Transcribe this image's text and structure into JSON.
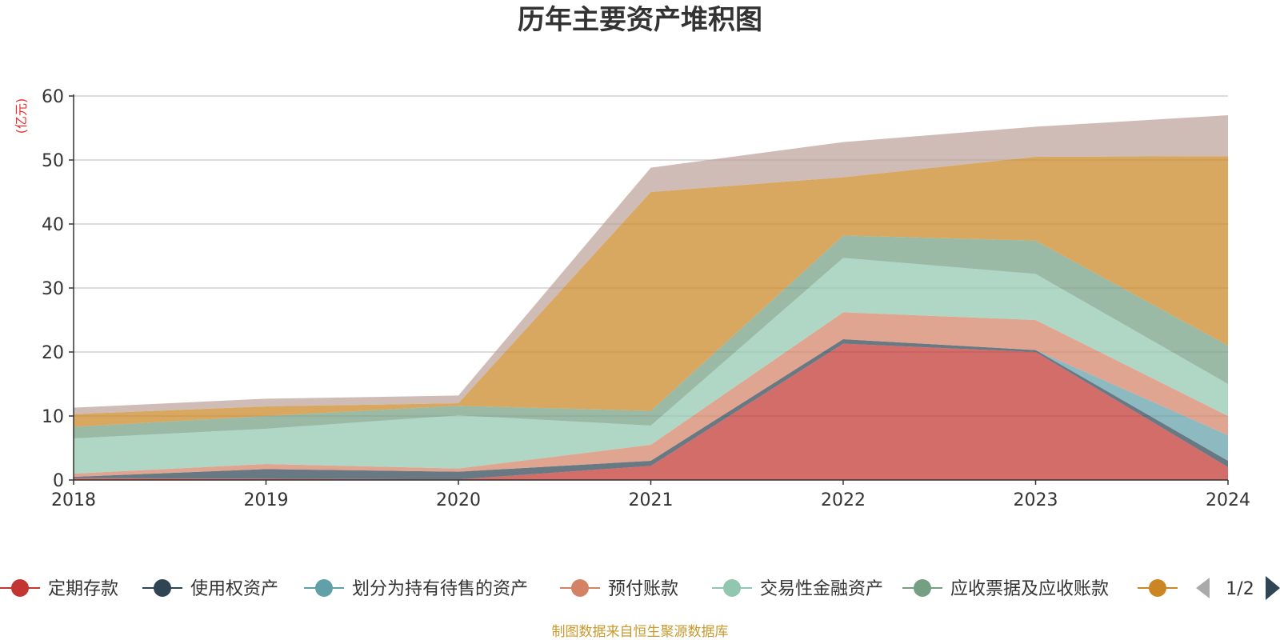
{
  "chart_data": {
    "type": "area",
    "stacked": true,
    "title": "历年主要资产堆积图",
    "yunit": "(亿元)",
    "categories": [
      "2018",
      "2019",
      "2020",
      "2021",
      "2022",
      "2023",
      "2024"
    ],
    "yticks": [
      "0",
      "10",
      "20",
      "30",
      "40",
      "50",
      "60"
    ],
    "ylim": [
      0,
      60
    ],
    "grid": true,
    "series": [
      {
        "name": "定期存款",
        "color": "#c23531",
        "values": [
          0.3,
          0.2,
          0.1,
          2.2,
          21.3,
          20.0,
          2.0
        ]
      },
      {
        "name": "使用权资产",
        "color": "#2f4554",
        "values": [
          0.2,
          1.5,
          1.2,
          0.8,
          0.7,
          0.3,
          1.0
        ]
      },
      {
        "name": "划分为持有待售的资产",
        "color": "#61a0a8",
        "values": [
          0,
          0,
          0,
          0,
          0,
          0,
          4.0
        ]
      },
      {
        "name": "预付账款",
        "color": "#d48265",
        "values": [
          0.5,
          0.8,
          0.5,
          2.5,
          4.2,
          4.7,
          3.0
        ]
      },
      {
        "name": "交易性金融资产",
        "color": "#91c7ae",
        "values": [
          5.5,
          5.5,
          8.3,
          3.0,
          8.5,
          7.2,
          5.0
        ]
      },
      {
        "name": "应收票据及应收账款",
        "color": "#749f83",
        "values": [
          1.8,
          2.0,
          1.5,
          2.3,
          3.5,
          5.2,
          6.0
        ]
      },
      {
        "name": "",
        "color": "#ca8622",
        "values": [
          2.0,
          1.5,
          0.4,
          34.2,
          9.1,
          13.1,
          29.6
        ]
      },
      {
        "name": "",
        "color": "#bda29a",
        "values": [
          1.0,
          1.2,
          1.2,
          3.8,
          5.5,
          4.7,
          6.4
        ]
      }
    ],
    "legend": {
      "items": [
        "定期存款",
        "使用权资产",
        "划分为持有待售的资产",
        "预付账款",
        "交易性金融资产",
        "应收票据及应收账款",
        ""
      ],
      "page": "1/2",
      "placement": "bottom"
    },
    "source": "制图数据来自恒生聚源数据库"
  }
}
